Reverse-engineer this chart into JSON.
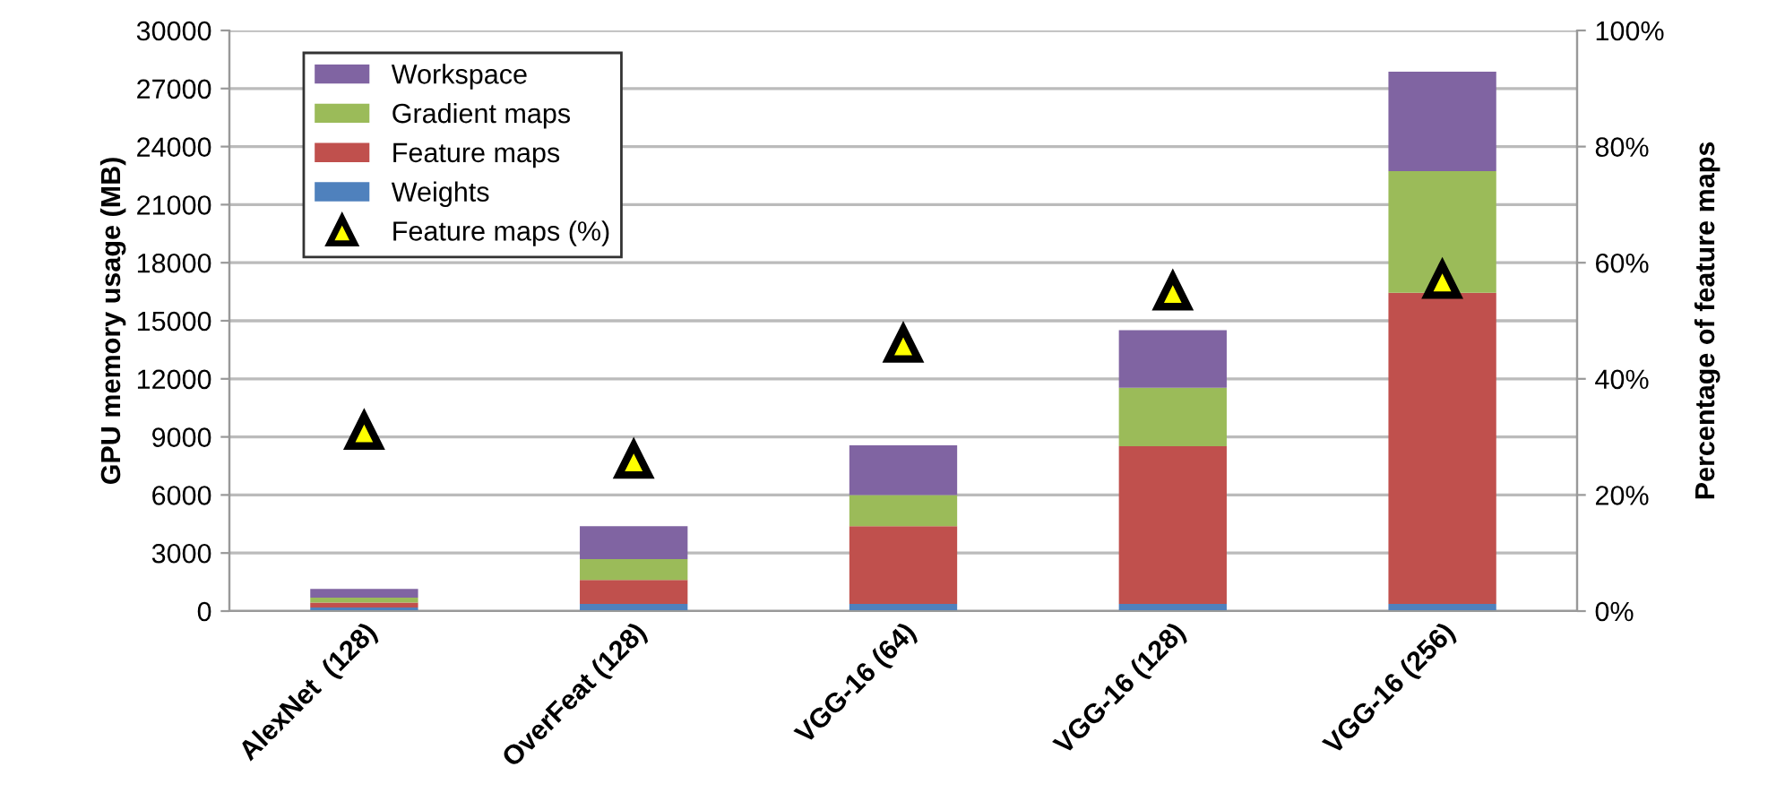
{
  "chart_data": {
    "type": "bar",
    "stacked": true,
    "ylabel": "GPU memory usage (MB)",
    "y2label": "Percentage of feature maps",
    "categories": [
      "AlexNet  (128)",
      "OverFeat (128)",
      "VGG-16 (64)",
      "VGG-16 (128)",
      "VGG-16 (256)"
    ],
    "series": [
      {
        "name": "Weights",
        "color": "#4f81bd",
        "values": [
          190,
          370,
          370,
          370,
          370
        ]
      },
      {
        "name": "Feature maps",
        "color": "#c0504d",
        "values": [
          250,
          1240,
          4020,
          8150,
          16080
        ]
      },
      {
        "name": "Gradient maps",
        "color": "#9bbb59",
        "values": [
          250,
          1080,
          1600,
          3020,
          6280
        ]
      },
      {
        "name": "Workspace",
        "color": "#8064a2",
        "values": [
          460,
          1700,
          2570,
          2970,
          5140
        ]
      },
      {
        "name": "Feature maps (%)",
        "type": "scatter",
        "axis": "y2",
        "marker": "triangle",
        "color": "#000000",
        "values": [
          31,
          26,
          46,
          55,
          57
        ]
      }
    ],
    "ylim": [
      0,
      30000
    ],
    "yticks": [
      0,
      3000,
      6000,
      9000,
      12000,
      15000,
      18000,
      21000,
      24000,
      27000,
      30000
    ],
    "y2lim": [
      0,
      100
    ],
    "y2ticks": [
      {
        "value": 0,
        "label": "0%"
      },
      {
        "value": 20,
        "label": "20%"
      },
      {
        "value": 40,
        "label": "40%"
      },
      {
        "value": 60,
        "label": "60%"
      },
      {
        "value": 80,
        "label": "80%"
      },
      {
        "value": 100,
        "label": "100%"
      }
    ],
    "grid": "y",
    "legend": "top left"
  }
}
